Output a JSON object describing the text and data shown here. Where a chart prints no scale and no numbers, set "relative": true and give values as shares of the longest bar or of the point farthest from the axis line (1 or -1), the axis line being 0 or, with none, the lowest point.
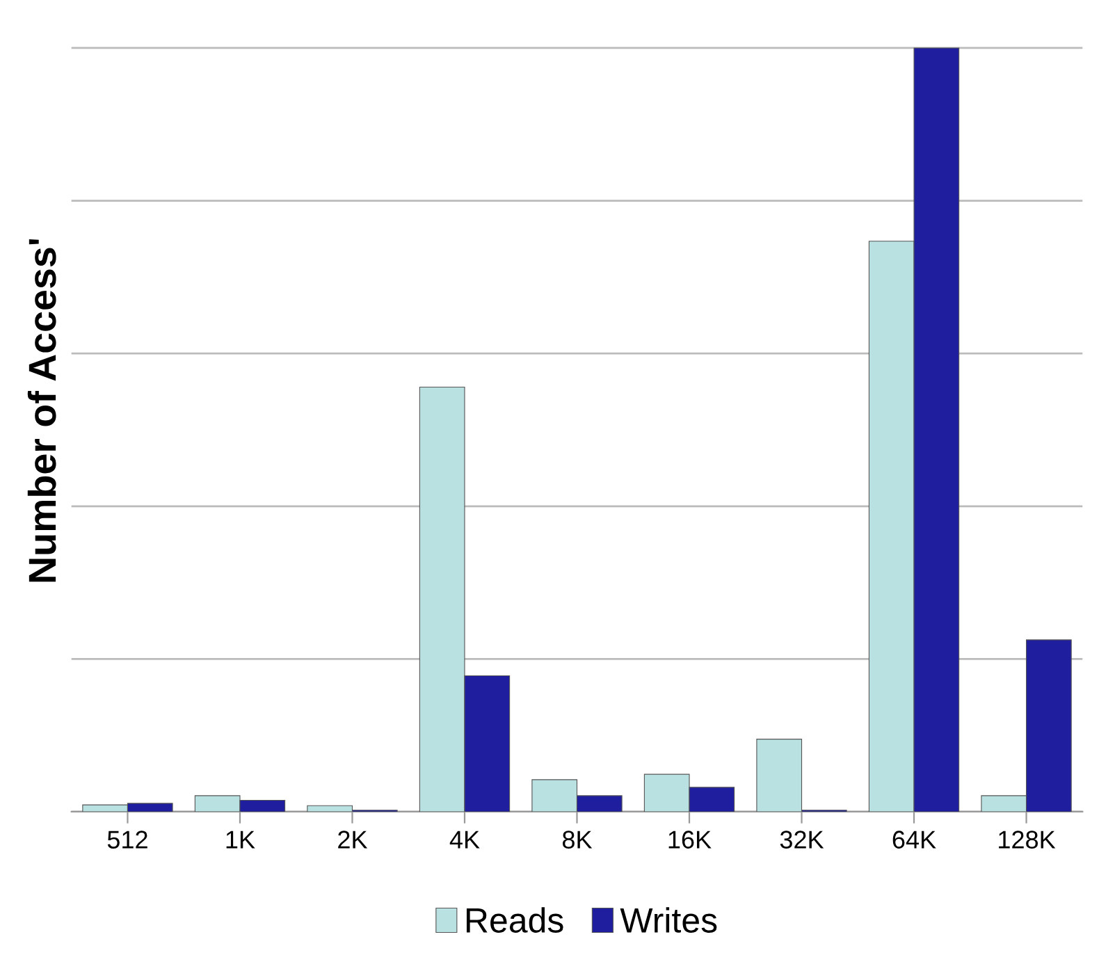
{
  "chart_data": {
    "type": "bar",
    "ylabel": "Number of Access'",
    "relative": true,
    "categories": [
      "512",
      "1K",
      "2K",
      "4K",
      "8K",
      "16K",
      "32K",
      "64K",
      "128K"
    ],
    "series": [
      {
        "name": "Reads",
        "color": "#b9e1e1",
        "values": [
          0.009,
          0.021,
          0.008,
          0.556,
          0.042,
          0.049,
          0.095,
          0.747,
          0.021
        ]
      },
      {
        "name": "Writes",
        "color": "#1e1e9e",
        "values": [
          0.011,
          0.015,
          0.002,
          0.178,
          0.021,
          0.032,
          0.002,
          1,
          0.225
        ]
      }
    ],
    "grid": "y",
    "legend": "bottom"
  }
}
